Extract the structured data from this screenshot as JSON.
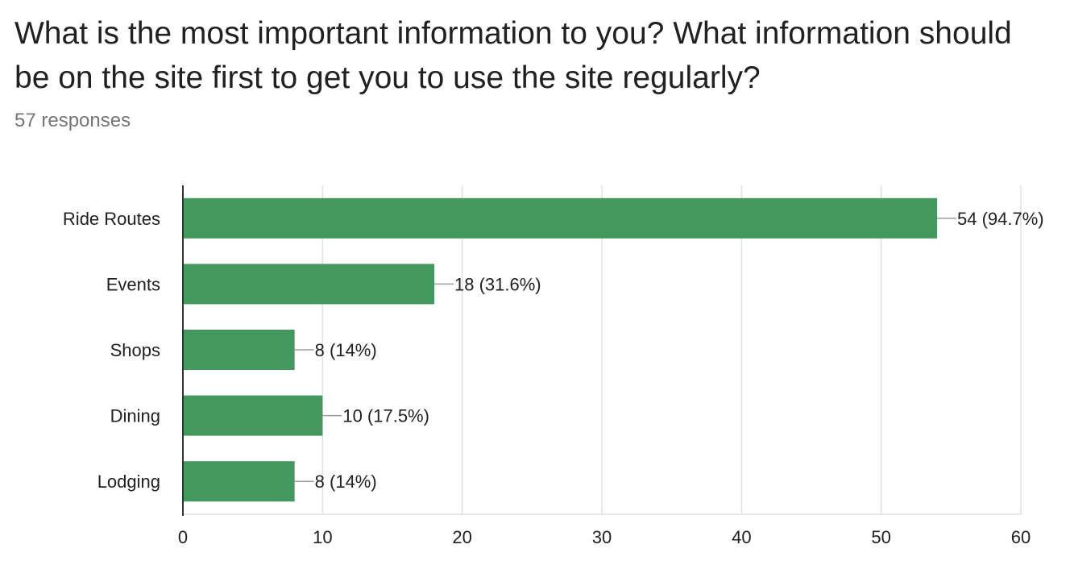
{
  "header": {
    "question": "What is the most important information to you? What information should be on the site first to get you to use the site regularly?",
    "responses": "57 responses"
  },
  "colors": {
    "bar": "#43995d",
    "grid": "#e0e0e0",
    "axis": "#333333",
    "text": "#212121",
    "muted": "#757575"
  },
  "chart_data": {
    "type": "bar",
    "orientation": "horizontal",
    "categories": [
      "Ride Routes",
      "Events",
      "Shops",
      "Dining",
      "Lodging"
    ],
    "values": [
      54,
      18,
      8,
      10,
      8
    ],
    "data_labels": [
      "54 (94.7%)",
      "18 (31.6%)",
      "8 (14%)",
      "10 (17.5%)",
      "8 (14%)"
    ],
    "xlim": [
      0,
      60
    ],
    "xticks": [
      0,
      10,
      20,
      30,
      40,
      50,
      60
    ],
    "grid": true,
    "xlabel": "",
    "ylabel": ""
  }
}
